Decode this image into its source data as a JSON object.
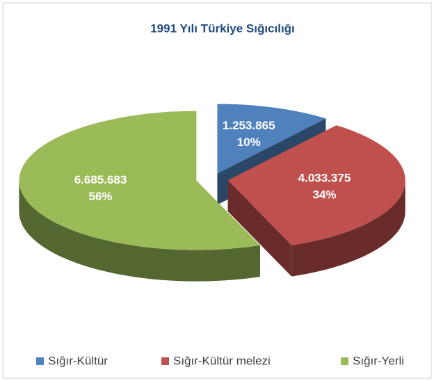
{
  "chart_data": {
    "type": "pie",
    "title": "1991 Yılı Türkiye Sığıcılığı",
    "categories": [
      "Sığır-Kültür",
      "Sığır-Kültür melezi",
      "Sığır-Yerli"
    ],
    "values": [
      1253865,
      4033375,
      6685683
    ],
    "value_labels": [
      "1.253.865",
      "4.033.375",
      "6.685.683"
    ],
    "percent_labels": [
      "10%",
      "34%",
      "56%"
    ],
    "colors": [
      "#4f81bd",
      "#c0504d",
      "#9bbb59"
    ],
    "legend": "bottom"
  }
}
